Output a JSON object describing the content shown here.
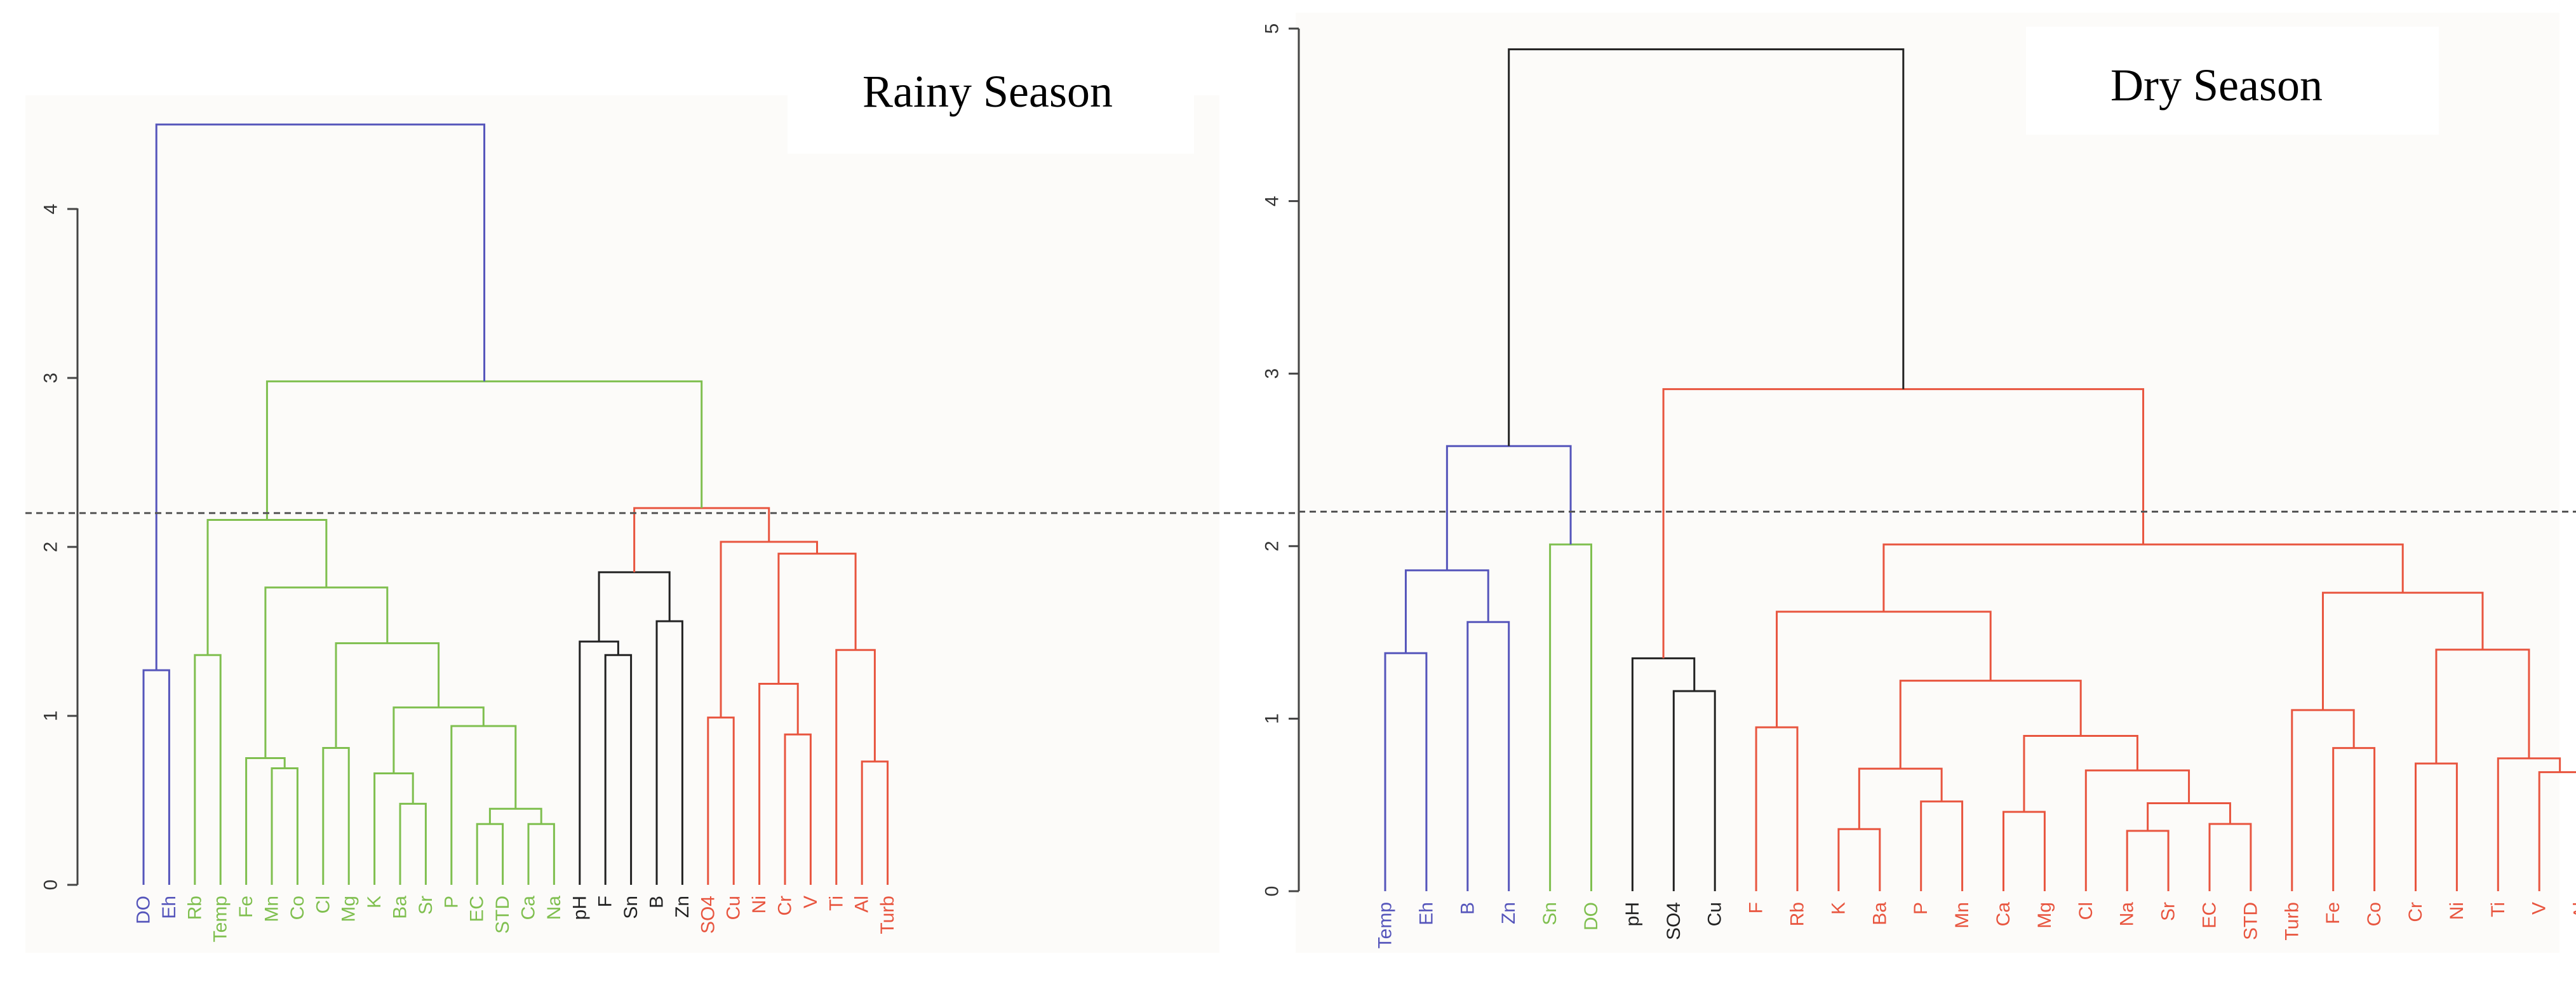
{
  "figure": {
    "colors": {
      "blue": "#5555bb",
      "green": "#7fbf4f",
      "black": "#222222",
      "red": "#e8553f"
    }
  },
  "chart_data": [
    {
      "type": "dendrogram",
      "title": "Rainy Season",
      "ylim": [
        0,
        5
      ],
      "yticks": [
        "0",
        "1",
        "2",
        "3",
        "4"
      ],
      "cut_height": 2.2,
      "leaves": [
        {
          "label": "DO",
          "cluster": "blue"
        },
        {
          "label": "Eh",
          "cluster": "blue"
        },
        {
          "label": "Rb",
          "cluster": "green"
        },
        {
          "label": "Temp",
          "cluster": "green"
        },
        {
          "label": "Fe",
          "cluster": "green"
        },
        {
          "label": "Mn",
          "cluster": "green"
        },
        {
          "label": "Co",
          "cluster": "green"
        },
        {
          "label": "Cl",
          "cluster": "green"
        },
        {
          "label": "Mg",
          "cluster": "green"
        },
        {
          "label": "K",
          "cluster": "green"
        },
        {
          "label": "Ba",
          "cluster": "green"
        },
        {
          "label": "Sr",
          "cluster": "green"
        },
        {
          "label": "P",
          "cluster": "green"
        },
        {
          "label": "EC",
          "cluster": "green"
        },
        {
          "label": "STD",
          "cluster": "green"
        },
        {
          "label": "Ca",
          "cluster": "green"
        },
        {
          "label": "Na",
          "cluster": "green"
        },
        {
          "label": "pH",
          "cluster": "black"
        },
        {
          "label": "F",
          "cluster": "black"
        },
        {
          "label": "Sn",
          "cluster": "black"
        },
        {
          "label": "B",
          "cluster": "black"
        },
        {
          "label": "Zn",
          "cluster": "black"
        },
        {
          "label": "SO4",
          "cluster": "red"
        },
        {
          "label": "Cu",
          "cluster": "red"
        },
        {
          "label": "Ni",
          "cluster": "red"
        },
        {
          "label": "Cr",
          "cluster": "red"
        },
        {
          "label": "V",
          "cluster": "red"
        },
        {
          "label": "Ti",
          "cluster": "red"
        },
        {
          "label": "Al",
          "cluster": "red"
        },
        {
          "label": "Turb",
          "cluster": "red"
        }
      ],
      "merges": [
        {
          "a": 0,
          "b": 1,
          "h": 1.27,
          "c": "blue"
        },
        {
          "a": 2,
          "b": 3,
          "h": 1.36,
          "c": "green"
        },
        {
          "a": 5,
          "b": 6,
          "h": 0.69,
          "c": "green"
        },
        {
          "a": 4,
          "b": "m2",
          "h": 0.75,
          "c": "green"
        },
        {
          "a": 7,
          "b": 8,
          "h": 0.81,
          "c": "green"
        },
        {
          "a": 10,
          "b": 11,
          "h": 0.48,
          "c": "green"
        },
        {
          "a": 9,
          "b": "m5",
          "h": 0.66,
          "c": "green"
        },
        {
          "a": 13,
          "b": 14,
          "h": 0.36,
          "c": "green"
        },
        {
          "a": 15,
          "b": 16,
          "h": 0.36,
          "c": "green"
        },
        {
          "a": "m7",
          "b": "m8",
          "h": 0.45,
          "c": "green"
        },
        {
          "a": 12,
          "b": "m9",
          "h": 0.94,
          "c": "green"
        },
        {
          "a": "m6",
          "b": "m10",
          "h": 1.05,
          "c": "green"
        },
        {
          "a": "m4",
          "b": "m11",
          "h": 1.43,
          "c": "green"
        },
        {
          "a": "m3",
          "b": "m12",
          "h": 1.76,
          "c": "green"
        },
        {
          "a": "m1",
          "b": "m13",
          "h": 2.16,
          "c": "green"
        },
        {
          "a": 18,
          "b": 19,
          "h": 1.36,
          "c": "black"
        },
        {
          "a": 17,
          "b": "m15",
          "h": 1.44,
          "c": "black"
        },
        {
          "a": 20,
          "b": 21,
          "h": 1.56,
          "c": "black"
        },
        {
          "a": "m16",
          "b": "m17",
          "h": 1.85,
          "c": "black"
        },
        {
          "a": 22,
          "b": 23,
          "h": 0.99,
          "c": "red"
        },
        {
          "a": 25,
          "b": 26,
          "h": 0.89,
          "c": "red"
        },
        {
          "a": 24,
          "b": "m20",
          "h": 1.19,
          "c": "red"
        },
        {
          "a": 28,
          "b": 29,
          "h": 0.73,
          "c": "red"
        },
        {
          "a": 27,
          "b": "m22",
          "h": 1.39,
          "c": "red"
        },
        {
          "a": "m21",
          "b": "m23",
          "h": 1.96,
          "c": "red"
        },
        {
          "a": "m19",
          "b": "m24",
          "h": 2.03,
          "c": "red"
        },
        {
          "a": "m18",
          "b": "m25",
          "h": 2.23,
          "c": "red"
        },
        {
          "a": "m14",
          "b": "m26",
          "h": 2.98,
          "c": "green"
        },
        {
          "a": "m0",
          "b": "m27",
          "h": 4.5,
          "c": "blue"
        }
      ]
    },
    {
      "type": "dendrogram",
      "title": "Dry Season",
      "ylim": [
        0,
        5
      ],
      "yticks": [
        "0",
        "1",
        "2",
        "3",
        "4",
        "5"
      ],
      "cut_height": 2.2,
      "leaves": [
        {
          "label": "Temp",
          "cluster": "blue"
        },
        {
          "label": "Eh",
          "cluster": "blue"
        },
        {
          "label": "B",
          "cluster": "blue"
        },
        {
          "label": "Zn",
          "cluster": "blue"
        },
        {
          "label": "Sn",
          "cluster": "green"
        },
        {
          "label": "DO",
          "cluster": "green"
        },
        {
          "label": "pH",
          "cluster": "black"
        },
        {
          "label": "SO4",
          "cluster": "black"
        },
        {
          "label": "Cu",
          "cluster": "black"
        },
        {
          "label": "F",
          "cluster": "red"
        },
        {
          "label": "Rb",
          "cluster": "red"
        },
        {
          "label": "K",
          "cluster": "red"
        },
        {
          "label": "Ba",
          "cluster": "red"
        },
        {
          "label": "P",
          "cluster": "red"
        },
        {
          "label": "Mn",
          "cluster": "red"
        },
        {
          "label": "Ca",
          "cluster": "red"
        },
        {
          "label": "Mg",
          "cluster": "red"
        },
        {
          "label": "Cl",
          "cluster": "red"
        },
        {
          "label": "Na",
          "cluster": "red"
        },
        {
          "label": "Sr",
          "cluster": "red"
        },
        {
          "label": "EC",
          "cluster": "red"
        },
        {
          "label": "STD",
          "cluster": "red"
        },
        {
          "label": "Turb",
          "cluster": "red"
        },
        {
          "label": "Fe",
          "cluster": "red"
        },
        {
          "label": "Co",
          "cluster": "red"
        },
        {
          "label": "Cr",
          "cluster": "red"
        },
        {
          "label": "Ni",
          "cluster": "red"
        },
        {
          "label": "Ti",
          "cluster": "red"
        },
        {
          "label": "V",
          "cluster": "red"
        },
        {
          "label": "Al",
          "cluster": "red"
        }
      ],
      "merges": [
        {
          "a": 0,
          "b": 1,
          "h": 1.38,
          "c": "blue"
        },
        {
          "a": 2,
          "b": 3,
          "h": 1.56,
          "c": "blue"
        },
        {
          "a": "m0",
          "b": "m1",
          "h": 1.86,
          "c": "blue"
        },
        {
          "a": 4,
          "b": 5,
          "h": 2.01,
          "c": "green"
        },
        {
          "a": "m2",
          "b": "m3",
          "h": 2.58,
          "c": "blue"
        },
        {
          "a": 7,
          "b": 8,
          "h": 1.16,
          "c": "black"
        },
        {
          "a": 6,
          "b": "m5",
          "h": 1.35,
          "c": "black"
        },
        {
          "a": 9,
          "b": 10,
          "h": 0.95,
          "c": "red"
        },
        {
          "a": 11,
          "b": 12,
          "h": 0.36,
          "c": "red"
        },
        {
          "a": 13,
          "b": 14,
          "h": 0.52,
          "c": "red"
        },
        {
          "a": "m8",
          "b": "m9",
          "h": 0.71,
          "c": "red"
        },
        {
          "a": 15,
          "b": 16,
          "h": 0.46,
          "c": "red"
        },
        {
          "a": 18,
          "b": 19,
          "h": 0.35,
          "c": "red"
        },
        {
          "a": 20,
          "b": 21,
          "h": 0.39,
          "c": "red"
        },
        {
          "a": "m12",
          "b": "m13",
          "h": 0.51,
          "c": "red"
        },
        {
          "a": 17,
          "b": "m14",
          "h": 0.7,
          "c": "red"
        },
        {
          "a": "m11",
          "b": "m15",
          "h": 0.9,
          "c": "red"
        },
        {
          "a": "m10",
          "b": "m16",
          "h": 1.22,
          "c": "red"
        },
        {
          "a": "m7",
          "b": "m17",
          "h": 1.62,
          "c": "red"
        },
        {
          "a": 23,
          "b": 24,
          "h": 0.83,
          "c": "red"
        },
        {
          "a": 22,
          "b": "m19",
          "h": 1.05,
          "c": "red"
        },
        {
          "a": 28,
          "b": 29,
          "h": 0.69,
          "c": "red"
        },
        {
          "a": 27,
          "b": "m21",
          "h": 0.77,
          "c": "red"
        },
        {
          "a": 25,
          "b": 26,
          "h": 0.74,
          "c": "red"
        },
        {
          "a": "m23",
          "b": "m22",
          "h": 1.4,
          "c": "red"
        },
        {
          "a": "m20",
          "b": "m24",
          "h": 1.73,
          "c": "red"
        },
        {
          "a": "m18",
          "b": "m25",
          "h": 2.01,
          "c": "red"
        },
        {
          "a": "m6",
          "b": "m26",
          "h": 2.91,
          "c": "red"
        },
        {
          "a": "m4",
          "b": "m27",
          "h": 4.88,
          "c": "black"
        }
      ]
    }
  ]
}
